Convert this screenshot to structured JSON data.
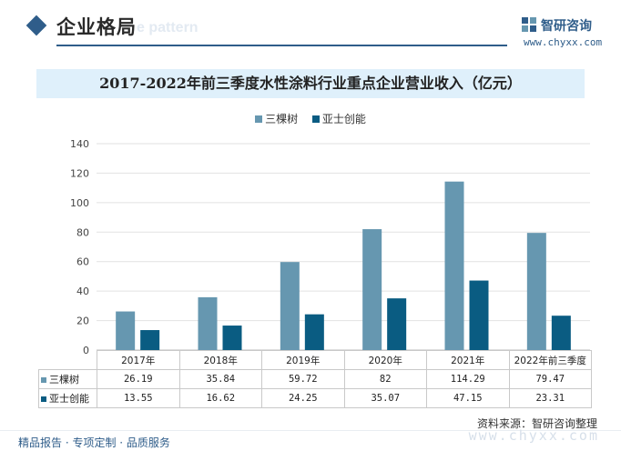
{
  "header": {
    "section_title": "企业格局",
    "ghost_text": "e pattern",
    "logo_name": "智研咨询",
    "logo_url": "www.chyxx.com"
  },
  "colors": {
    "series_1": "#6697b0",
    "series_2": "#0a5c82",
    "accent": "#2f5d8a",
    "title_band": "#dff0fb"
  },
  "chart_data": {
    "type": "bar",
    "title": "2017-2022年前三季度水性涂料行业重点企业营业收入（亿元）",
    "categories": [
      "2017年",
      "2018年",
      "2019年",
      "2020年",
      "2021年",
      "2022年前三季度"
    ],
    "series": [
      {
        "name": "三棵树",
        "values": [
          26.19,
          35.84,
          59.72,
          82,
          114.29,
          79.47
        ]
      },
      {
        "name": "亚士创能",
        "values": [
          13.55,
          16.62,
          24.25,
          35.07,
          47.15,
          23.31
        ]
      }
    ],
    "table_values": [
      [
        "26.19",
        "35.84",
        "59.72",
        "82",
        "114.29",
        "79.47"
      ],
      [
        "13.55",
        "16.62",
        "24.25",
        "35.07",
        "47.15",
        "23.31"
      ]
    ],
    "yticks": [
      0,
      20,
      40,
      60,
      80,
      100,
      120,
      140
    ],
    "ylim": [
      0,
      140
    ],
    "grid": true,
    "legend_position": "top-center",
    "xlabel": "",
    "ylabel": ""
  },
  "source": "资料来源：智研咨询整理",
  "footer": {
    "services": "精品报告 · 专项定制 · 品质服务",
    "watermark_url": "www.chyxx.com"
  }
}
